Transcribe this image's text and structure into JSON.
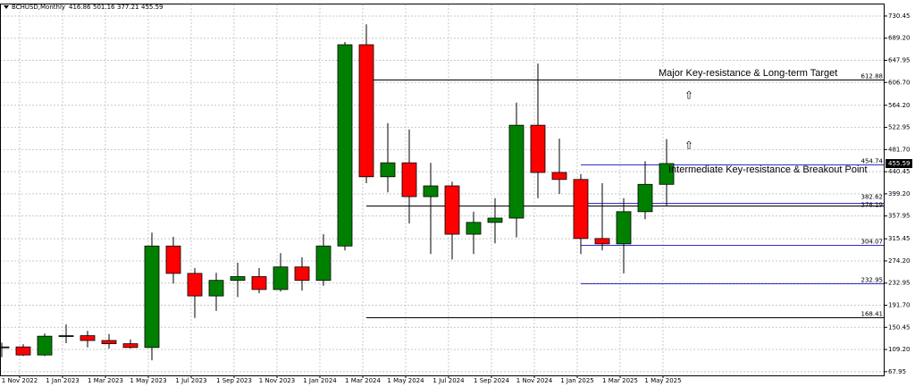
{
  "chart_data": {
    "type": "candlestick",
    "symbol": "BCHUSD,Monthly",
    "categories": [
      null,
      "1 Nov 2022",
      null,
      "1 Jan 2023",
      null,
      "1 Mar 2023",
      null,
      "1 May 2023",
      null,
      "1 Jul 2023",
      null,
      "1 Sep 2023",
      null,
      "1 Nov 2023",
      null,
      "1 Jan 2024",
      null,
      "1 Mar 2024",
      null,
      "1 May 2024",
      null,
      "1 Jul 2024",
      null,
      "1 Sep 2024",
      null,
      "1 Nov 2024",
      null,
      "1 Jan 2025",
      null,
      "1 Mar 2025",
      null,
      "1 May 2025"
    ],
    "open": [
      113,
      114,
      99,
      134,
      135,
      126,
      120,
      113,
      302,
      251,
      209,
      238,
      245,
      221,
      263,
      238,
      302,
      677,
      431,
      457,
      394,
      414,
      324,
      346,
      354,
      527,
      439,
      426,
      316,
      306,
      366,
      416.86
    ],
    "high": [
      122,
      119,
      139,
      156,
      144,
      138,
      128,
      327,
      319,
      261,
      252,
      271,
      261,
      289,
      281,
      324,
      682,
      715,
      531,
      519,
      457,
      422,
      366,
      391,
      569,
      642,
      502,
      436,
      419,
      391,
      460,
      501.16
    ],
    "low": [
      95,
      97,
      97,
      121,
      113,
      111,
      111,
      89,
      232,
      168,
      181,
      207,
      214,
      217,
      219,
      228,
      294,
      419,
      402,
      344,
      287,
      277,
      287,
      307,
      318,
      391,
      399,
      287,
      294,
      251,
      352,
      377.21
    ],
    "close": [
      114,
      99,
      134,
      135,
      126,
      120,
      113,
      302,
      251,
      209,
      238,
      245,
      221,
      263,
      238,
      302,
      677,
      431,
      457,
      394,
      414,
      324,
      346,
      354,
      527,
      439,
      426,
      316,
      306,
      366,
      416.86,
      455.59
    ],
    "up_color": "#008000",
    "down_color": "#ff0000",
    "ylim": [
      61,
      752
    ],
    "yticks": [
      730.45,
      {
        "value": 689.2,
        "label": "689.20"
      },
      647.95,
      {
        "value": 606.7,
        "label": "606.70"
      },
      {
        "value": 564.2,
        "label": "564.20"
      },
      522.95,
      {
        "value": 481.7,
        "label": "481.70"
      },
      440.45,
      {
        "value": 399.2,
        "label": "399.20"
      },
      357.95,
      315.45,
      {
        "value": 274.2,
        "label": "274.20"
      },
      232.95,
      {
        "value": 191.7,
        "label": "191.70"
      },
      150.45,
      {
        "value": 109.2,
        "label": "109.20"
      },
      67.95
    ],
    "grid": true,
    "levels": [
      {
        "value": 612.88,
        "color": "#000000"
      },
      {
        "value": 454.74,
        "color": "#3030c8"
      },
      {
        "value": 382.62,
        "color": "#3030c8"
      },
      {
        "value": 378.19,
        "color": "#000000"
      },
      {
        "value": 304.07,
        "color": "#3030c8"
      },
      {
        "value": 232.95,
        "color": "#3030c8"
      },
      {
        "value": 168.41,
        "color": "#000000"
      }
    ],
    "annotations": [
      "Major Key-resistance & Long-term Target",
      "Intermediate Key-resistance & Breakout Point"
    ]
  }
}
